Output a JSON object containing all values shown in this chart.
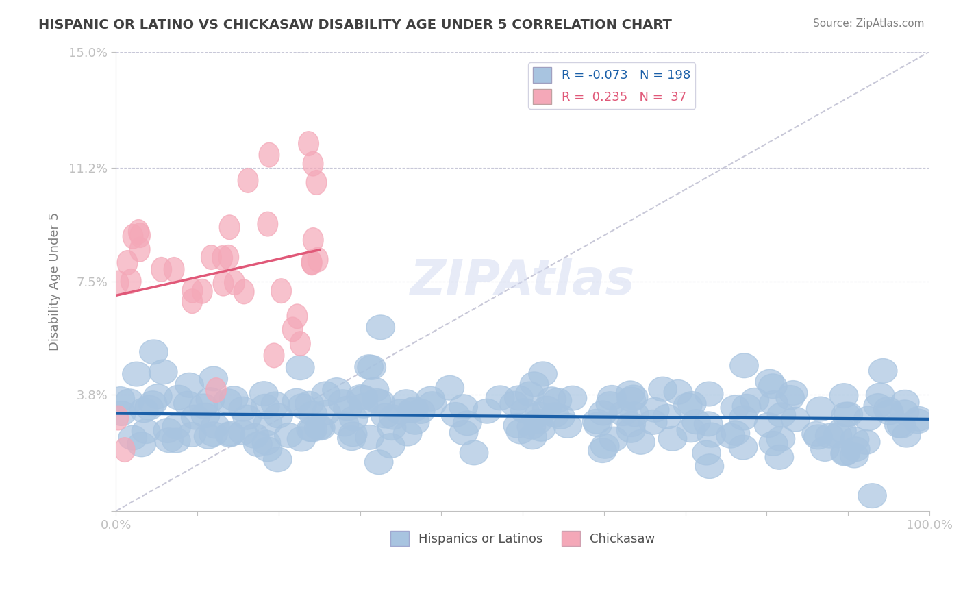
{
  "title": "HISPANIC OR LATINO VS CHICKASAW DISABILITY AGE UNDER 5 CORRELATION CHART",
  "source": "Source: ZipAtlas.com",
  "xlabel": "",
  "ylabel": "Disability Age Under 5",
  "xlim": [
    0,
    1.0
  ],
  "ylim": [
    0,
    0.15
  ],
  "yticks": [
    0,
    0.038,
    0.075,
    0.112,
    0.15
  ],
  "ytick_labels": [
    "",
    "3.8%",
    "7.5%",
    "11.2%",
    "15.0%"
  ],
  "xtick_labels": [
    "0.0%",
    "100.0%"
  ],
  "blue_R": -0.073,
  "blue_N": 198,
  "pink_R": 0.235,
  "pink_N": 37,
  "blue_color": "#a8c4e0",
  "pink_color": "#f4a8b8",
  "blue_line_color": "#1a5fa8",
  "pink_line_color": "#e05878",
  "ref_line_color": "#c8c8d8",
  "title_color": "#404040",
  "axis_label_color": "#5878c8",
  "tick_label_color": "#5878c8",
  "watermark_color": "#d0d8f0",
  "legend_label_blue": "Hispanics or Latinos",
  "legend_label_pink": "Chickasaw"
}
